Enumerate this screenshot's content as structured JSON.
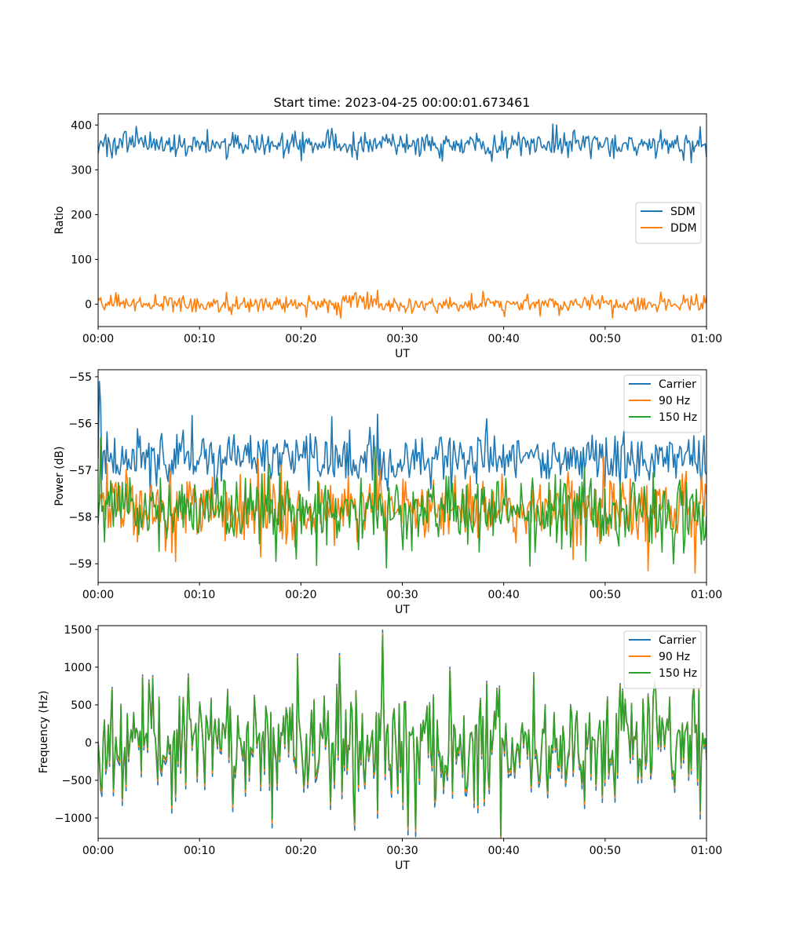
{
  "figure": {
    "title": "Start time: 2023-04-25 00:00:01.673461"
  },
  "chart_data": [
    {
      "type": "line",
      "title": "Start time: 2023-04-25 00:00:01.673461",
      "xlabel": "UT",
      "ylabel": "Ratio",
      "xlim": [
        "00:00",
        "01:00"
      ],
      "ylim": [
        -50,
        425
      ],
      "xticks": [
        "00:00",
        "00:10",
        "00:20",
        "00:30",
        "00:40",
        "00:50",
        "01:00"
      ],
      "yticks": [
        "0",
        "100",
        "200",
        "300",
        "400"
      ],
      "legend_position": "center-right",
      "series": [
        {
          "name": "SDM",
          "color": "#1f77b4",
          "mean": 357,
          "noise": 14,
          "n": 480,
          "spikes": [
            {
              "at_minute": 3.8,
              "value": 397
            },
            {
              "at_minute": 44.8,
              "value": 402
            },
            {
              "at_minute": 45.2,
              "value": 400
            },
            {
              "at_minute": 20.0,
              "value": 320
            },
            {
              "at_minute": 58.5,
              "value": 316
            }
          ]
        },
        {
          "name": "DDM",
          "color": "#ff7f0e",
          "mean": 0,
          "noise": 9,
          "n": 480,
          "spikes": [
            {
              "at_minute": 27.5,
              "value": 31
            },
            {
              "at_minute": 25.4,
              "value": 26
            },
            {
              "at_minute": 40.1,
              "value": -28
            },
            {
              "at_minute": 23.6,
              "value": -24
            },
            {
              "at_minute": 59.8,
              "value": 19
            }
          ]
        }
      ]
    },
    {
      "type": "line",
      "title": "",
      "xlabel": "UT",
      "ylabel": "Power (dB)",
      "xlim": [
        "00:00",
        "01:00"
      ],
      "ylim": [
        -59.4,
        -54.85
      ],
      "xticks": [
        "00:00",
        "00:10",
        "00:20",
        "00:30",
        "00:40",
        "00:50",
        "01:00"
      ],
      "yticks": [
        "−59",
        "−58",
        "−57",
        "−56",
        "−55"
      ],
      "legend_position": "top-right",
      "series": [
        {
          "name": "Carrier",
          "color": "#1f77b4",
          "mean": -56.75,
          "noise": 0.3,
          "n": 480,
          "spikes": [
            {
              "at_minute": 0.1,
              "value": -55.1
            },
            {
              "at_minute": 0.25,
              "value": -55.6
            },
            {
              "at_minute": 27.6,
              "value": -55.8
            },
            {
              "at_minute": 38.3,
              "value": -55.9
            }
          ]
        },
        {
          "name": "90 Hz",
          "color": "#ff7f0e",
          "mean": -57.85,
          "noise": 0.38,
          "n": 480,
          "spikes": [
            {
              "at_minute": 7.7,
              "value": -58.95
            },
            {
              "at_minute": 54.3,
              "value": -59.15
            },
            {
              "at_minute": 58.9,
              "value": -59.2
            },
            {
              "at_minute": 27.8,
              "value": -57.0
            }
          ]
        },
        {
          "name": "150 Hz",
          "color": "#2ca02c",
          "mean": -57.85,
          "noise": 0.38,
          "n": 480,
          "spikes": [
            {
              "at_minute": 0.2,
              "value": -56.3
            },
            {
              "at_minute": 27.3,
              "value": -56.5
            },
            {
              "at_minute": 42.6,
              "value": -59.05
            },
            {
              "at_minute": 56.8,
              "value": -59.0
            },
            {
              "at_minute": 19.5,
              "value": -58.9
            }
          ]
        }
      ]
    },
    {
      "type": "line",
      "title": "",
      "xlabel": "UT",
      "ylabel": "Frequency (Hz)",
      "xlim": [
        "00:00",
        "01:00"
      ],
      "ylim": [
        -1270,
        1550
      ],
      "xticks": [
        "00:00",
        "00:10",
        "00:20",
        "00:30",
        "00:40",
        "00:50",
        "01:00"
      ],
      "yticks": [
        "−1000",
        "−500",
        "0",
        "500",
        "1000",
        "1500"
      ],
      "legend_position": "top-right",
      "series": [
        {
          "name": "Carrier",
          "color": "#1f77b4",
          "offset": -60,
          "n": 480
        },
        {
          "name": "90 Hz",
          "color": "#ff7f0e",
          "offset": -25,
          "n": 480
        },
        {
          "name": "150 Hz",
          "color": "#2ca02c",
          "offset": 0,
          "n": 480,
          "noise": 380,
          "spikes": [
            {
              "at_minute": 28.1,
              "value": 1420
            },
            {
              "at_minute": 19.7,
              "value": 1120
            },
            {
              "at_minute": 30.6,
              "value": -1110
            },
            {
              "at_minute": 31.3,
              "value": -1130
            },
            {
              "at_minute": 17.1,
              "value": -1020
            }
          ]
        }
      ]
    }
  ]
}
